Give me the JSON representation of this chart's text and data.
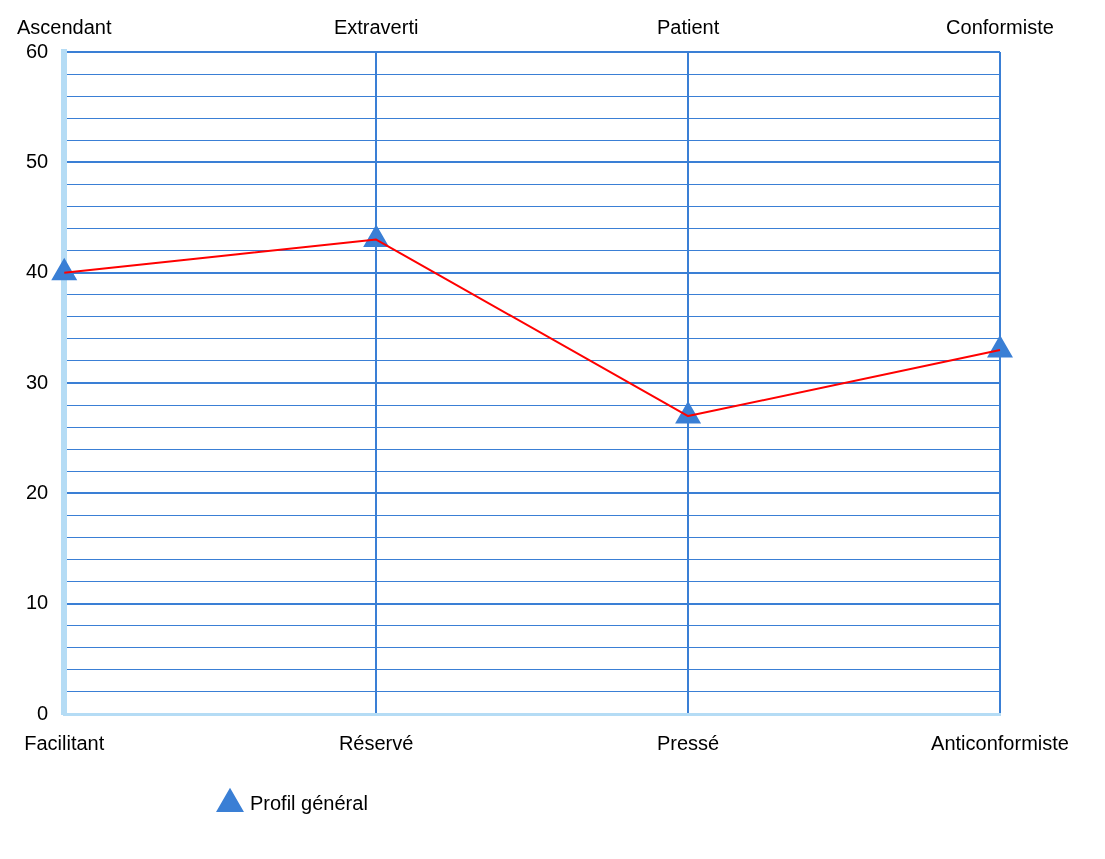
{
  "chart_data": {
    "type": "line",
    "categories": [
      "Facilitant",
      "Réservé",
      "Pressé",
      "Anticonformiste"
    ],
    "annotations": [
      "Ascendant",
      "Extraverti",
      "Patient",
      "Conformiste"
    ],
    "ylim": [
      0,
      60
    ],
    "yticks": [
      0,
      {
        "value": 2,
        "label": null
      },
      {
        "value": 4,
        "label": null
      },
      {
        "value": 6,
        "label": null
      },
      {
        "value": 8,
        "label": null
      },
      10,
      {
        "value": 12,
        "label": null
      },
      {
        "value": 14,
        "label": null
      },
      {
        "value": 16,
        "label": null
      },
      {
        "value": 18,
        "label": null
      },
      20,
      {
        "value": 22,
        "label": null
      },
      {
        "value": 24,
        "label": null
      },
      {
        "value": 26,
        "label": null
      },
      {
        "value": 28,
        "label": null
      },
      30,
      {
        "value": 32,
        "label": null
      },
      {
        "value": 34,
        "label": null
      },
      {
        "value": 36,
        "label": null
      },
      {
        "value": 38,
        "label": null
      },
      40,
      {
        "value": 42,
        "label": null
      },
      {
        "value": 44,
        "label": null
      },
      {
        "value": 46,
        "label": null
      },
      {
        "value": 48,
        "label": null
      },
      50,
      {
        "value": 52,
        "label": null
      },
      {
        "value": 54,
        "label": null
      },
      {
        "value": 56,
        "label": null
      },
      {
        "value": 58,
        "label": null
      },
      60
    ],
    "series": [
      {
        "type": "line",
        "color": "#ff0000",
        "marker": "none",
        "values": [
          40,
          43,
          27,
          33
        ]
      },
      {
        "type": "scatter",
        "name": "Profil général",
        "color": "#3a7fd5",
        "marker": "triangle",
        "values": [
          40,
          43,
          27,
          33
        ]
      }
    ],
    "grid": true,
    "legend": "bottom"
  }
}
